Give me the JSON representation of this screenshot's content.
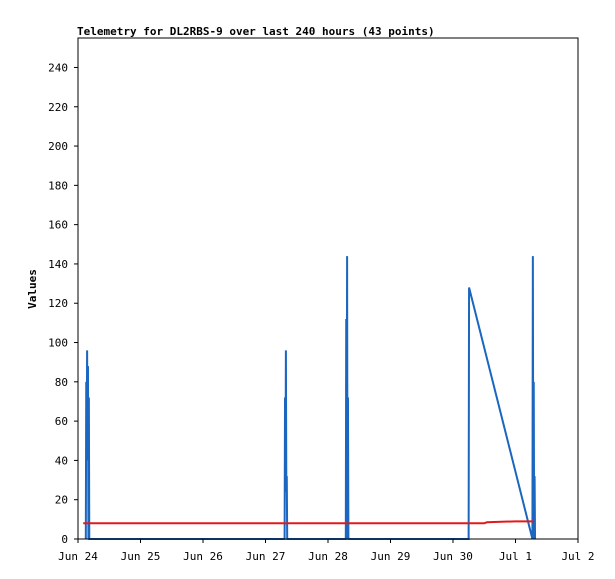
{
  "chart_data": {
    "type": "line",
    "title": "Telemetry for DL2RBS-9 over last 240 hours (43 points)",
    "xlabel": "",
    "ylabel": "Values",
    "x_ticks": [
      "Jun 24",
      "Jun 25",
      "Jun 26",
      "Jun 27",
      "Jun 28",
      "Jun 29",
      "Jun 30",
      "Jul 1",
      "Jul 2"
    ],
    "xlim": [
      "Jun 24 00:00",
      "Jul 2 00:00"
    ],
    "ylim": [
      0,
      255
    ],
    "y_ticks": [
      0,
      20,
      40,
      60,
      80,
      100,
      120,
      140,
      160,
      180,
      200,
      220,
      240
    ],
    "grid": false,
    "legend": "none",
    "colors": {
      "series_a": "#1a66c0",
      "series_b": "#e01a1a",
      "axis": "#000000"
    },
    "series": [
      {
        "color": "#1a66c0",
        "points": [
          [
            "Jun 24 03:00",
            0
          ],
          [
            "Jun 24 03:10",
            80
          ],
          [
            "Jun 24 03:20",
            40
          ],
          [
            "Jun 24 03:30",
            96
          ],
          [
            "Jun 24 03:40",
            40
          ],
          [
            "Jun 24 03:50",
            88
          ],
          [
            "Jun 24 04:00",
            0
          ],
          [
            "Jun 24 04:10",
            72
          ],
          [
            "Jun 24 04:20",
            0
          ],
          [
            "Jun 27 07:20",
            0
          ],
          [
            "Jun 27 07:30",
            72
          ],
          [
            "Jun 27 07:40",
            24
          ],
          [
            "Jun 27 07:50",
            96
          ],
          [
            "Jun 27 08:00",
            24
          ],
          [
            "Jun 27 08:10",
            32
          ],
          [
            "Jun 27 08:20",
            0
          ],
          [
            "Jun 28 06:50",
            0
          ],
          [
            "Jun 28 07:00",
            112
          ],
          [
            "Jun 28 07:10",
            0
          ],
          [
            "Jun 28 07:20",
            144
          ],
          [
            "Jun 28 07:30",
            0
          ],
          [
            "Jun 28 07:40",
            72
          ],
          [
            "Jun 28 07:50",
            0
          ],
          [
            "Jun 30 06:00",
            0
          ],
          [
            "Jun 30 06:10",
            128
          ],
          [
            "Jul 1 06:30",
            0
          ],
          [
            "Jul 1 06:40",
            144
          ],
          [
            "Jul 1 06:50",
            0
          ],
          [
            "Jul 1 07:00",
            80
          ],
          [
            "Jul 1 07:10",
            0
          ],
          [
            "Jul 1 07:20",
            32
          ],
          [
            "Jul 1 07:30",
            0
          ]
        ]
      },
      {
        "color": "#e01a1a",
        "points": [
          [
            "Jun 24 02:00",
            8
          ],
          [
            "Jun 30 12:00",
            8
          ],
          [
            "Jun 30 13:00",
            8.5
          ],
          [
            "Jul 1 00:00",
            9
          ],
          [
            "Jul 1 07:00",
            9
          ]
        ]
      }
    ]
  }
}
